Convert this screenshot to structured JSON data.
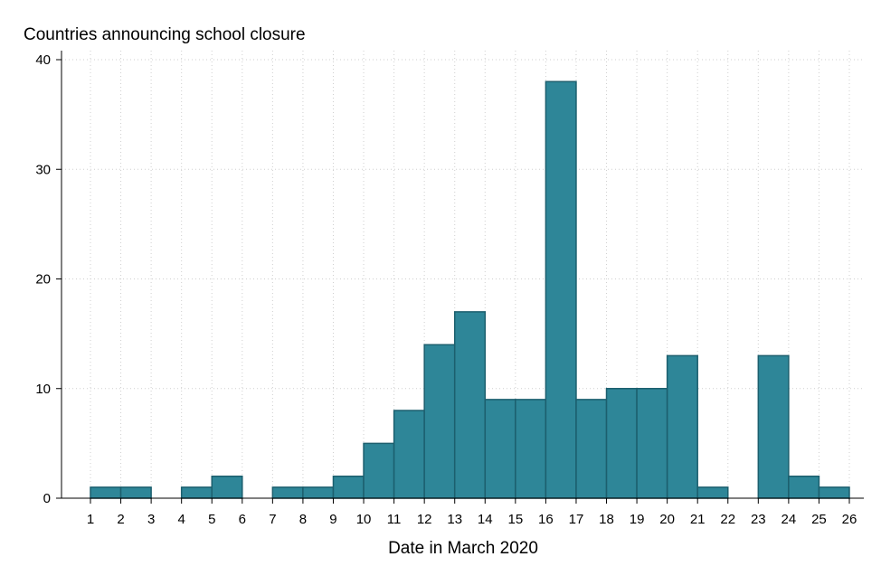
{
  "chart_data": {
    "type": "bar",
    "title": "Countries announcing school closure",
    "xlabel": "Date in March 2020",
    "ylabel": "",
    "xlim": [
      1,
      26
    ],
    "ylim": [
      0,
      40
    ],
    "x_ticks": [
      1,
      2,
      3,
      4,
      5,
      6,
      7,
      8,
      9,
      10,
      11,
      12,
      13,
      14,
      15,
      16,
      17,
      18,
      19,
      20,
      21,
      22,
      23,
      24,
      25,
      26
    ],
    "y_ticks": [
      0,
      10,
      20,
      30,
      40
    ],
    "grid": true,
    "bars": [
      {
        "start": 1,
        "end": 2,
        "value": 1
      },
      {
        "start": 2,
        "end": 3,
        "value": 1
      },
      {
        "start": 3,
        "end": 4,
        "value": 0
      },
      {
        "start": 4,
        "end": 5,
        "value": 1
      },
      {
        "start": 5,
        "end": 6,
        "value": 2
      },
      {
        "start": 6,
        "end": 7,
        "value": 0
      },
      {
        "start": 7,
        "end": 8,
        "value": 1
      },
      {
        "start": 8,
        "end": 9,
        "value": 1
      },
      {
        "start": 9,
        "end": 10,
        "value": 2
      },
      {
        "start": 10,
        "end": 11,
        "value": 5
      },
      {
        "start": 11,
        "end": 12,
        "value": 8
      },
      {
        "start": 12,
        "end": 13,
        "value": 14
      },
      {
        "start": 13,
        "end": 14,
        "value": 17
      },
      {
        "start": 14,
        "end": 15,
        "value": 9
      },
      {
        "start": 15,
        "end": 16,
        "value": 9
      },
      {
        "start": 16,
        "end": 17,
        "value": 38
      },
      {
        "start": 17,
        "end": 18,
        "value": 9
      },
      {
        "start": 18,
        "end": 19,
        "value": 10
      },
      {
        "start": 19,
        "end": 20,
        "value": 10
      },
      {
        "start": 20,
        "end": 21,
        "value": 13
      },
      {
        "start": 21,
        "end": 22,
        "value": 1
      },
      {
        "start": 22,
        "end": 23,
        "value": 0
      },
      {
        "start": 23,
        "end": 24,
        "value": 13
      },
      {
        "start": 24,
        "end": 25,
        "value": 2
      },
      {
        "start": 25,
        "end": 26,
        "value": 1
      }
    ],
    "colors": {
      "bar_fill": "#2e8698",
      "bar_stroke": "#1c5f6e",
      "grid": "#cfcfcf",
      "axis": "#000000"
    }
  }
}
